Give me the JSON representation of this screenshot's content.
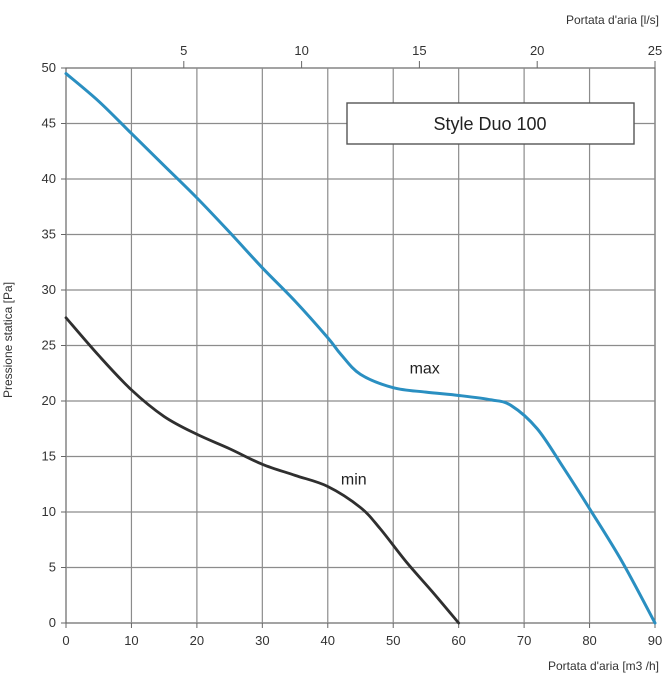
{
  "chart_data": {
    "type": "line",
    "title": "Style Duo 100",
    "xlabel": "Portata d'aria [m3 /h]",
    "x2label": "Portata d'aria [l/s]",
    "ylabel": "Pressione statica [Pa]",
    "xlim": [
      0,
      90
    ],
    "ylim": [
      0,
      50
    ],
    "x2lim": [
      0,
      25
    ],
    "x_ticks": [
      0,
      10,
      20,
      30,
      40,
      50,
      60,
      70,
      80,
      90
    ],
    "y_ticks": [
      0,
      5,
      10,
      15,
      20,
      25,
      30,
      35,
      40,
      45,
      50
    ],
    "x2_ticks": [
      5,
      10,
      15,
      20,
      25
    ],
    "grid": true,
    "legend_position": "top-right",
    "series": [
      {
        "name": "max",
        "color": "#2a8fc1",
        "label_anchor": [
          52.5,
          22.5
        ],
        "x": [
          0,
          5,
          10,
          15,
          20,
          25,
          30,
          35,
          40,
          42,
          45,
          50,
          55,
          60,
          65,
          68,
          72,
          76,
          80,
          85,
          90
        ],
        "y": [
          49.5,
          47,
          44.1,
          41.2,
          38.3,
          35.2,
          32,
          29,
          25.7,
          24.2,
          22.4,
          21.2,
          20.8,
          20.5,
          20.1,
          19.6,
          17.5,
          14,
          10.3,
          5.5,
          0
        ]
      },
      {
        "name": "min",
        "color": "#2f2f2f",
        "label_anchor": [
          42,
          12.5
        ],
        "x": [
          0,
          5,
          10,
          15,
          20,
          25,
          30,
          35,
          40,
          45,
          48,
          52,
          56,
          60
        ],
        "y": [
          27.5,
          24.1,
          21,
          18.6,
          17,
          15.7,
          14.3,
          13.3,
          12.3,
          10.4,
          8.5,
          5.5,
          2.8,
          0
        ]
      }
    ]
  }
}
